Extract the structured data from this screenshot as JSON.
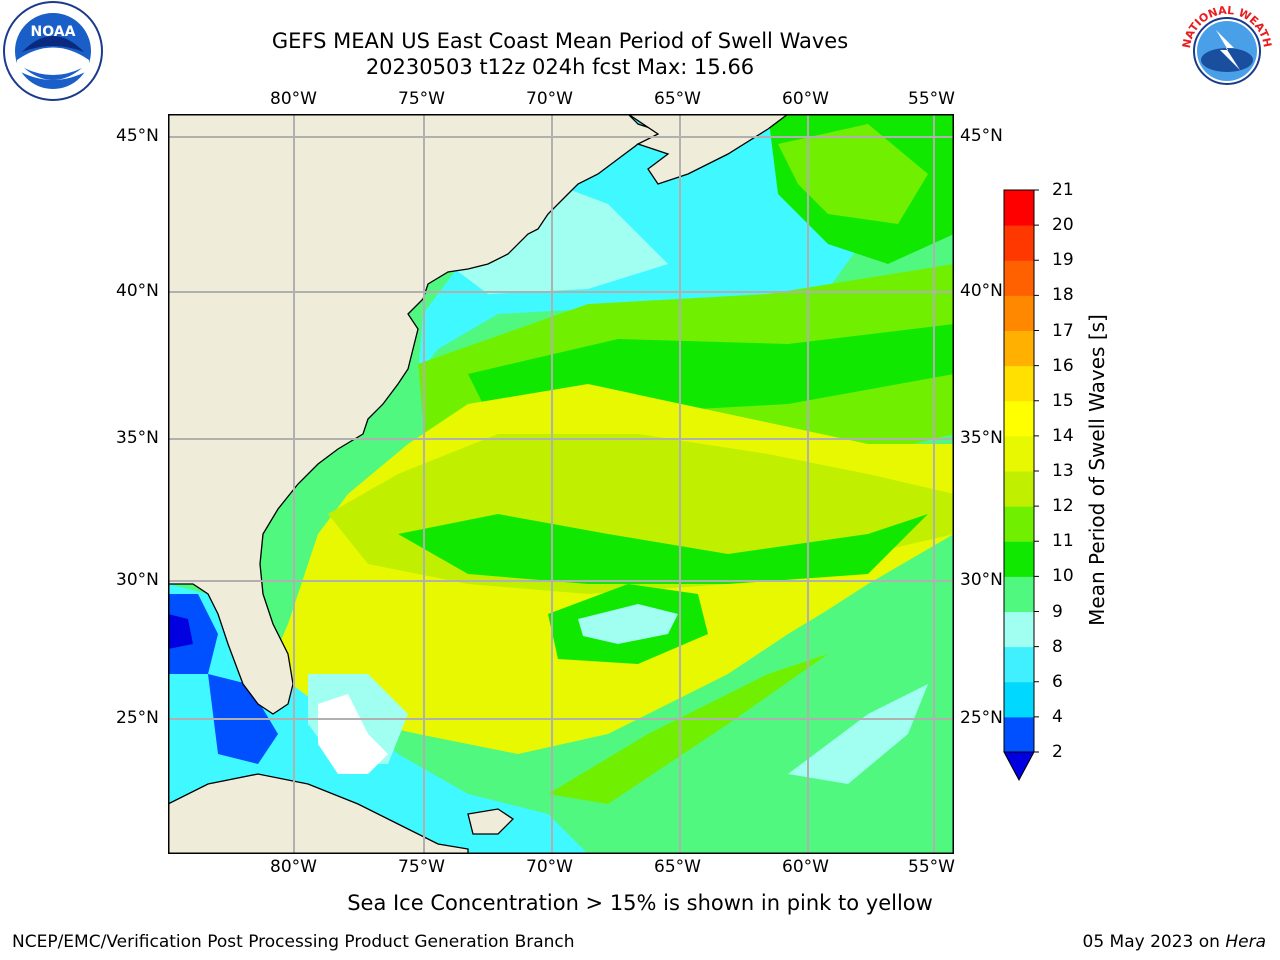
{
  "title_line1": "GEFS MEAN US East Coast Mean Period of Swell Waves",
  "title_line2": "20230503 t12z 024h fcst   Max: 15.66",
  "lon_labels": [
    "80°W",
    "75°W",
    "70°W",
    "65°W",
    "60°W",
    "55°W"
  ],
  "lat_labels": [
    "45°N",
    "40°N",
    "35°N",
    "30°N",
    "25°N"
  ],
  "colorbar": {
    "label": "Mean Period of Swell Waves [s]",
    "ticks": [
      "21",
      "20",
      "19",
      "18",
      "17",
      "16",
      "15",
      "14",
      "13",
      "12",
      "11",
      "10",
      "9",
      "8",
      "6",
      "4",
      "2"
    ],
    "colors_bottom_to_top": [
      "#0050ff",
      "#00d8ff",
      "#40f0ff",
      "#a0fff0",
      "#50f880",
      "#10e800",
      "#70f000",
      "#c0f000",
      "#e8f800",
      "#ffff00",
      "#ffe000",
      "#ffb000",
      "#ff8800",
      "#ff6000",
      "#ff3800",
      "#ff0000"
    ],
    "extend_color": "#0000e0"
  },
  "caption": "Sea Ice Concentration > 15% is shown in pink to yellow",
  "footer_left": "NCEP/EMC/Verification Post Processing Product Generation Branch",
  "footer_date": "05 May 2023 on ",
  "footer_host": "Hera",
  "logos": {
    "left": {
      "name": "noaa-logo",
      "text": "NOAA"
    },
    "right": {
      "name": "nws-logo",
      "text": "NATIONAL WEATHER SERVICE"
    }
  },
  "map_colors": {
    "land": "#efedda",
    "cyan": "#40f8ff",
    "light_cyan": "#a0fff0",
    "mint": "#50f880",
    "green": "#10e800",
    "lime": "#70f000",
    "yellow_green": "#c0f000",
    "yellow": "#e8f800",
    "blue": "#0050ff",
    "dark_blue": "#0000e0",
    "grid": "#b0b0b0"
  }
}
